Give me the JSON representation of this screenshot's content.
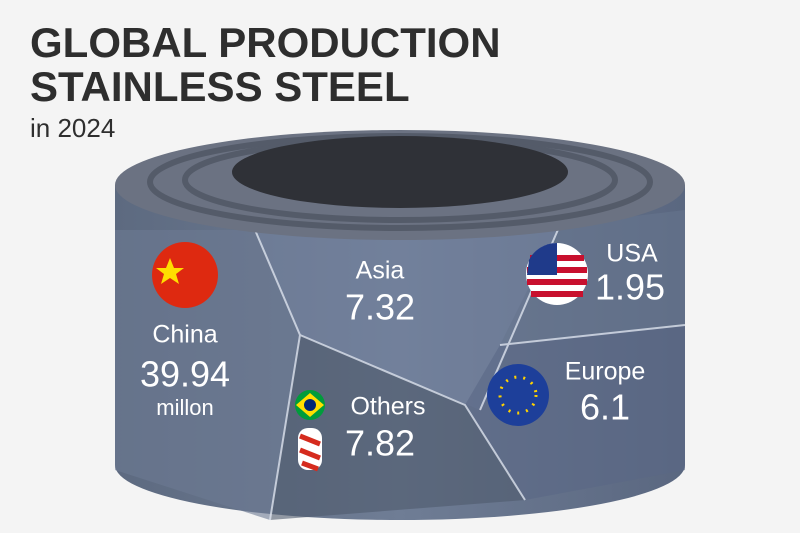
{
  "header": {
    "title_lines": [
      "GLOBAL PRODUCTION",
      "STAINLESS STEEL"
    ],
    "subtitle": "in 2024"
  },
  "regions": [
    {
      "name": "China",
      "value": "39.94",
      "unit": "millon"
    },
    {
      "name": "Asia",
      "value": "7.32"
    },
    {
      "name": "USA",
      "value": "1.95"
    },
    {
      "name": "Others",
      "value": "7.82"
    },
    {
      "name": "Europe",
      "value": "6.1"
    }
  ]
}
